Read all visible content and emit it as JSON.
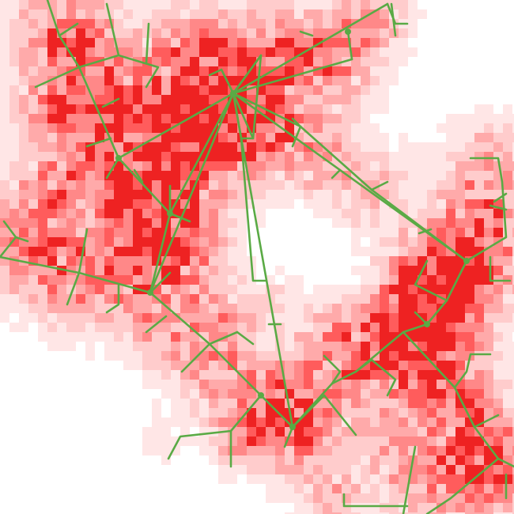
{
  "map": {
    "colors": {
      "background": "#ffffff",
      "heat": [
        "#ffe6e6",
        "#ffcccc",
        "#ffaaaa",
        "#ff8888",
        "#ff5c5c",
        "#ee2222"
      ],
      "network": "#5aaa45"
    }
  }
}
